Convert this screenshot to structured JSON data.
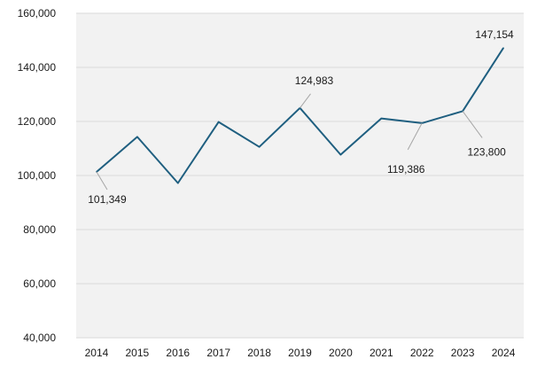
{
  "chart_data": {
    "type": "line",
    "categories": [
      "2014",
      "2015",
      "2016",
      "2017",
      "2018",
      "2019",
      "2020",
      "2021",
      "2022",
      "2023",
      "2024"
    ],
    "values": [
      101349,
      114300,
      97200,
      119800,
      110600,
      124983,
      107700,
      121100,
      119386,
      123800,
      147154
    ],
    "ylim": [
      40000,
      160000
    ],
    "yticks": [
      40000,
      60000,
      80000,
      100000,
      120000,
      140000,
      160000
    ],
    "ytick_labels": [
      "40,000",
      "60,000",
      "80,000",
      "100,000",
      "120,000",
      "140,000",
      "160,000"
    ],
    "grid": true,
    "title": "",
    "xlabel": "",
    "ylabel": "",
    "annotations": [
      {
        "index": 0,
        "text": "101,349"
      },
      {
        "index": 5,
        "text": "124,983"
      },
      {
        "index": 8,
        "text": "119,386"
      },
      {
        "index": 9,
        "text": "123,800"
      },
      {
        "index": 10,
        "text": "147,154"
      }
    ],
    "colors": {
      "line": "#1f5f80",
      "plot_bg": "#f2f2f2",
      "grid": "#d9d9d9",
      "leader": "#a6a6a6"
    }
  }
}
